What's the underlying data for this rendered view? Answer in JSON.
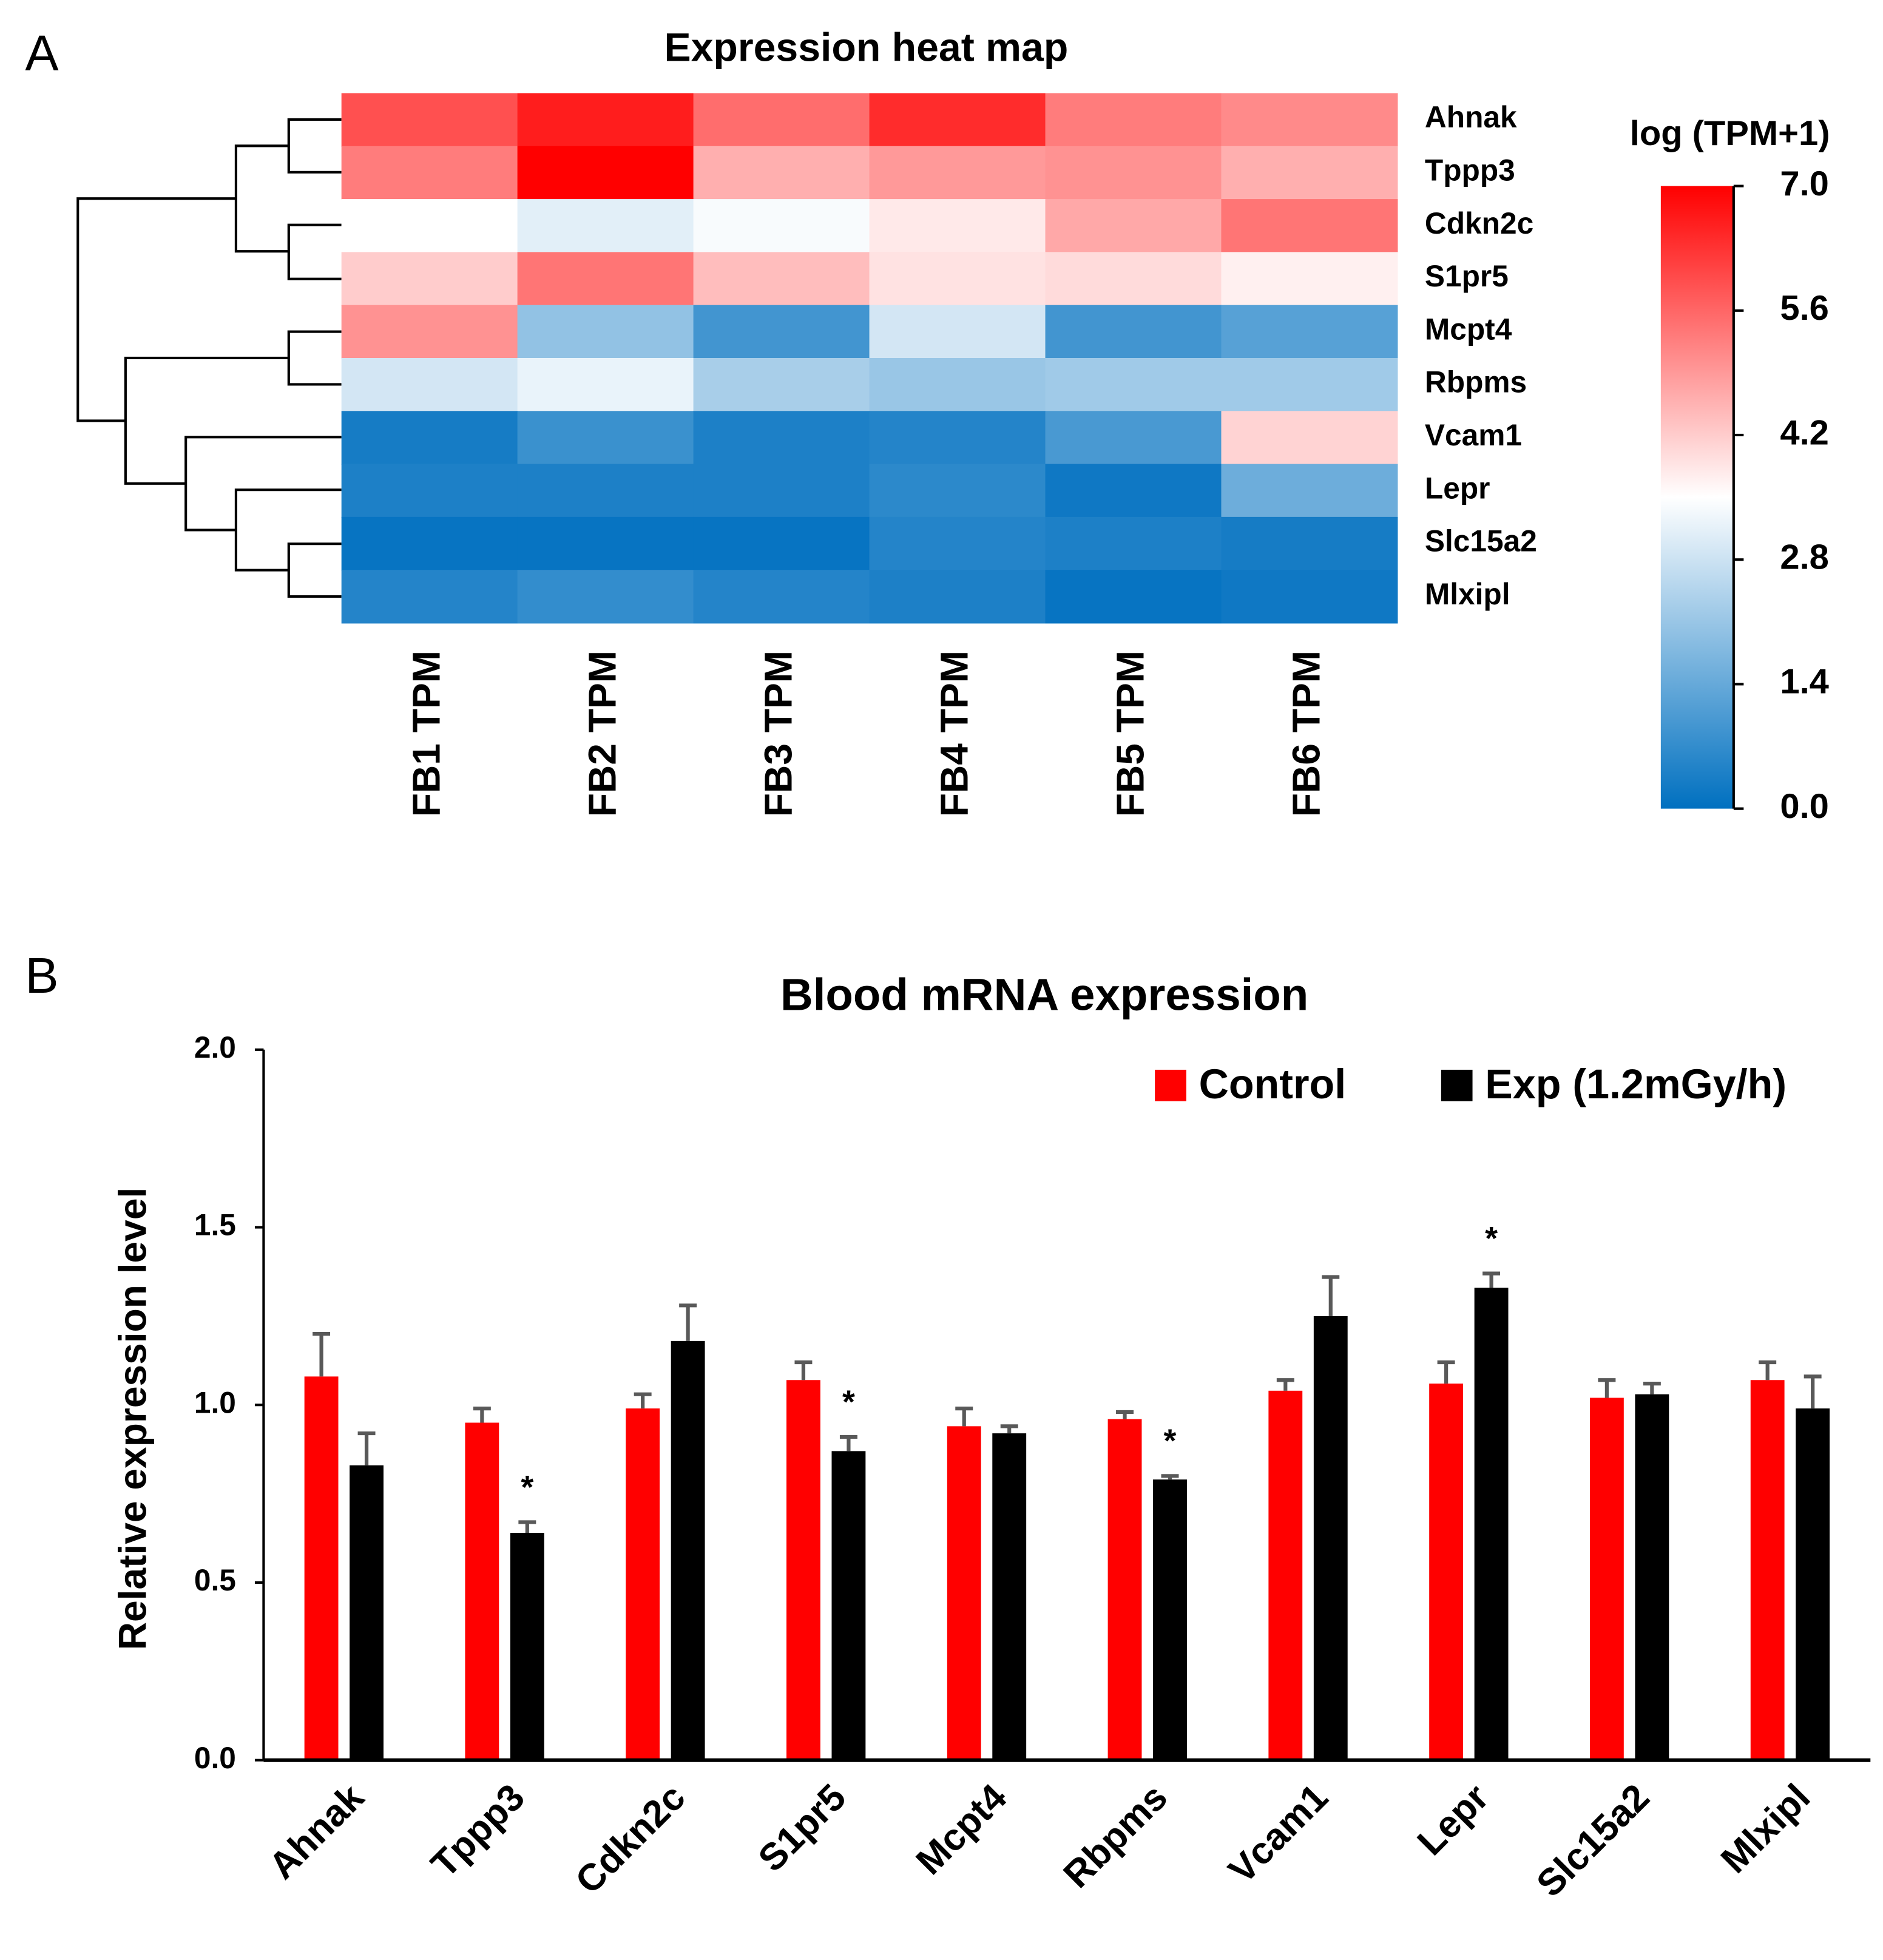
{
  "chart_data": [
    {
      "type": "heatmap",
      "panel": "A",
      "title": "Expression heat map",
      "colorbar_title": "log (TPM+1)",
      "categories": [
        "FB1 TPM",
        "FB2 TPM",
        "FB3 TPM",
        "FB4 TPM",
        "FB5 TPM",
        "FB6 TPM"
      ],
      "rows": [
        "Ahnak",
        "Tppp3",
        "Cdkn2c",
        "S1pr5",
        "Mcpt4",
        "Rbpms",
        "Vcam1",
        "Lepr",
        "Slc15a2",
        "Mlxipl"
      ],
      "z": [
        [
          5.9,
          6.6,
          5.5,
          6.4,
          5.3,
          5.1
        ],
        [
          5.3,
          7.0,
          4.6,
          4.9,
          5.0,
          4.6
        ],
        [
          3.5,
          3.1,
          3.4,
          3.8,
          4.7,
          5.4
        ],
        [
          4.2,
          5.4,
          4.4,
          3.9,
          4.0,
          3.7
        ],
        [
          5.0,
          2.0,
          0.9,
          2.9,
          0.9,
          1.2
        ],
        [
          2.9,
          3.2,
          2.3,
          2.1,
          2.2,
          2.2
        ],
        [
          0.3,
          0.8,
          0.4,
          0.5,
          1.0,
          4.1
        ],
        [
          0.4,
          0.4,
          0.4,
          0.6,
          0.2,
          1.5
        ],
        [
          0.1,
          0.1,
          0.1,
          0.5,
          0.4,
          0.3
        ],
        [
          0.5,
          0.7,
          0.5,
          0.4,
          0.1,
          0.2
        ]
      ],
      "colorscale": [
        "#0070c0",
        "#ffffff",
        "#ff0000"
      ],
      "zlim": [
        0,
        7
      ],
      "zticks": [
        {
          "value": 0,
          "label": "0.0"
        },
        1.4,
        2.8,
        4.2,
        5.6,
        {
          "value": 7,
          "label": "7.0"
        }
      ]
    },
    {
      "type": "bar",
      "panel": "B",
      "title": "Blood mRNA expression",
      "ylabel": "Relative expression level",
      "categories": [
        "Ahnak",
        "Tppp3",
        "Cdkn2c",
        "S1pr5",
        "Mcpt4",
        "Rbpms",
        "Vcam1",
        "Lepr",
        "Slc15a2",
        "Mlxipl"
      ],
      "series": [
        {
          "name": "Control",
          "color": "#ff0000",
          "values": [
            1.08,
            0.95,
            0.99,
            1.07,
            0.94,
            0.96,
            1.04,
            1.06,
            1.02,
            1.07
          ],
          "errors": [
            0.12,
            0.04,
            0.04,
            0.05,
            0.05,
            0.02,
            0.03,
            0.06,
            0.05,
            0.05
          ]
        },
        {
          "name": "Exp (1.2mGy/h)",
          "color": "#000000",
          "values": [
            0.83,
            0.64,
            1.18,
            0.87,
            0.92,
            0.79,
            1.25,
            1.33,
            1.03,
            0.99
          ],
          "errors": [
            0.09,
            0.03,
            0.1,
            0.04,
            0.02,
            0.01,
            0.11,
            0.04,
            0.03,
            0.09
          ],
          "markers": [
            null,
            "*",
            null,
            "*",
            null,
            "*",
            null,
            "*",
            null,
            null
          ]
        }
      ],
      "error_color": "#595959",
      "ylim": [
        0,
        2
      ],
      "yticks": [
        {
          "value": 0,
          "label": "0.0"
        },
        0.5,
        {
          "value": 1,
          "label": "1.0"
        },
        1.5,
        {
          "value": 2,
          "label": "2.0"
        }
      ],
      "legend": "top-right"
    }
  ]
}
